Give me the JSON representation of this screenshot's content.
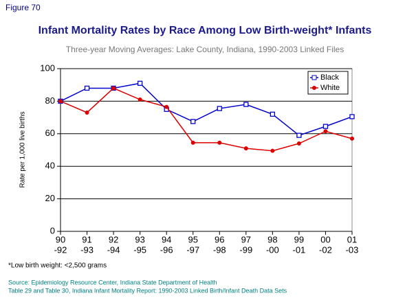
{
  "chart_data": {
    "type": "line",
    "figure_label": "Figure 70",
    "title": "Infant Mortality Rates by Race Among Low Birth-weight* Infants",
    "subtitle": "Three-year Moving Averages: Lake County, Indiana, 1990-2003 Linked Files",
    "y_label": "Rate per 1,000 live births",
    "categories": [
      [
        "90",
        "-92"
      ],
      [
        "91",
        "-93"
      ],
      [
        "92",
        "-94"
      ],
      [
        "93",
        "-95"
      ],
      [
        "94",
        "-96"
      ],
      [
        "95",
        "-97"
      ],
      [
        "96",
        "-98"
      ],
      [
        "97",
        "-99"
      ],
      [
        "98",
        "-00"
      ],
      [
        "99",
        "-01"
      ],
      [
        "00",
        "-02"
      ],
      [
        "01",
        "-03"
      ]
    ],
    "series": [
      {
        "name": "Black",
        "color": "#0000cc",
        "marker": "square",
        "values": [
          80,
          88,
          88,
          91,
          75,
          67.5,
          75.5,
          78,
          72,
          59,
          64.5,
          70.5
        ]
      },
      {
        "name": "White",
        "color": "#dd0000",
        "marker": "circle",
        "values": [
          80,
          73,
          88,
          81,
          76.5,
          54.5,
          54.5,
          51,
          49.5,
          54,
          61.5,
          57
        ]
      }
    ],
    "ylim": [
      0,
      100
    ],
    "yticks": [
      0,
      20,
      40,
      60,
      80,
      100
    ],
    "grid": true,
    "legend": "upper right",
    "footnote": "*Low birth weight: <2,500 grams",
    "source": [
      "Source: Epidemiology Resource Center, Indiana State Department of Health",
      "Table 29 and Table 30, Indiana Infant Mortality Report: 1990-2003 Linked Birth/Infant Death Data Sets"
    ]
  }
}
